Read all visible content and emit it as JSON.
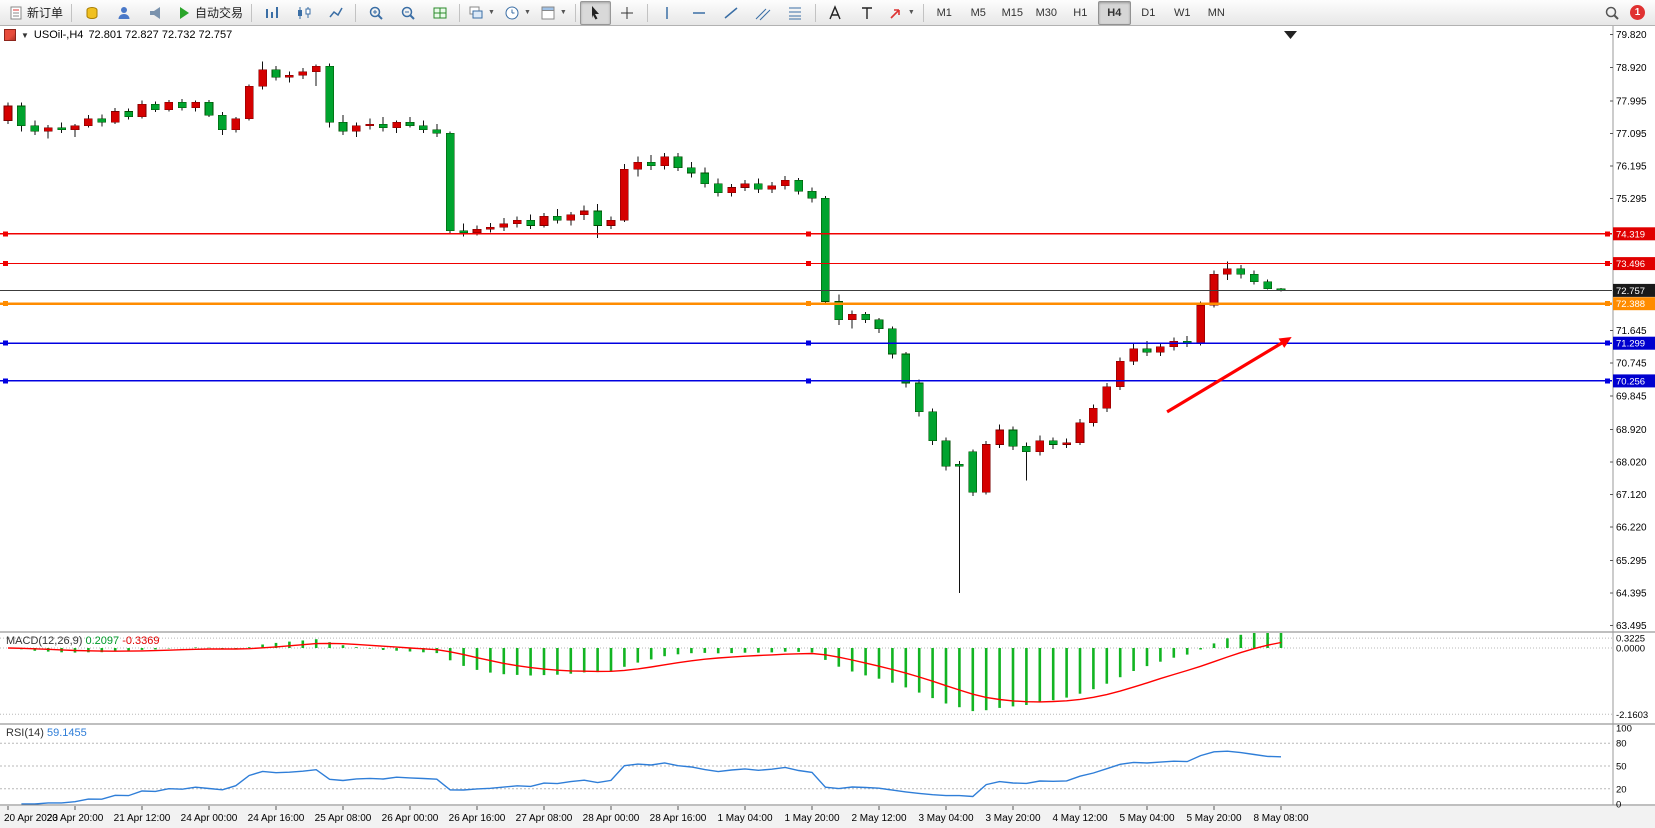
{
  "window": {
    "badge_count": "1"
  },
  "toolbar": {
    "new_order_label": "新订单",
    "auto_trading_label": "自动交易",
    "timeframes": [
      "M1",
      "M5",
      "M15",
      "M30",
      "H1",
      "H4",
      "D1",
      "W1",
      "MN"
    ],
    "active_timeframe": "H4",
    "items": [
      {
        "name": "new-order-button",
        "icon": "new-order-icon",
        "label_key": "new_order_label"
      },
      {
        "sep": true
      },
      {
        "name": "market-watch-button",
        "icon": "coins-icon"
      },
      {
        "name": "accounts-button",
        "icon": "person-icon"
      },
      {
        "name": "alerts-button",
        "icon": "megaphone-icon"
      },
      {
        "name": "auto-trading-button",
        "icon": "play-icon",
        "label_key": "auto_trading_label"
      },
      {
        "sep": true
      },
      {
        "name": "bar-chart-button",
        "icon": "bars-icon"
      },
      {
        "name": "candlestick-chart-button",
        "icon": "candles-icon"
      },
      {
        "name": "line-chart-button",
        "icon": "line-icon"
      },
      {
        "sep": true
      },
      {
        "name": "zoom-in-button",
        "icon": "zoom-in-icon"
      },
      {
        "name": "zoom-out-button",
        "icon": "zoom-out-icon"
      },
      {
        "name": "tile-windows-button",
        "icon": "grid-icon"
      },
      {
        "sep": true
      },
      {
        "name": "new-chart-button",
        "icon": "cascade-icon",
        "caret": true
      },
      {
        "name": "profiles-button",
        "icon": "clock-icon",
        "caret": true
      },
      {
        "name": "indicators-button",
        "icon": "template-icon",
        "caret": true
      },
      {
        "sep": true
      },
      {
        "name": "cursor-button",
        "icon": "cursor-icon",
        "pressed": true
      },
      {
        "name": "crosshair-button",
        "icon": "crosshair-icon"
      },
      {
        "sep": true
      },
      {
        "name": "vertical-line-button",
        "icon": "vline-icon"
      },
      {
        "name": "horizontal-line-button",
        "icon": "hline-icon"
      },
      {
        "name": "trendline-button",
        "icon": "trend-icon"
      },
      {
        "name": "channel-button",
        "icon": "channel-icon"
      },
      {
        "name": "fibonacci-button",
        "icon": "fibo-icon"
      },
      {
        "sep": true
      },
      {
        "name": "text-button",
        "icon": "text-a-icon"
      },
      {
        "name": "label-button",
        "icon": "text-t-icon"
      },
      {
        "name": "arrows-button",
        "icon": "arrow-draw-icon",
        "caret": true
      },
      {
        "sep": true
      },
      {
        "timeframes": true
      },
      {
        "spacer": true
      },
      {
        "name": "search-button",
        "icon": "magnifier-icon"
      },
      {
        "badge": true
      }
    ]
  },
  "chart_header": {
    "dropdown_glyph": "▼",
    "symbol_period": "USOil-,H4",
    "ohlc_text": "72.801 72.827 72.732 72.757"
  },
  "price_axis": {
    "labels": [
      79.82,
      78.92,
      77.995,
      77.095,
      76.195,
      75.295,
      71.645,
      70.745,
      69.845,
      68.92,
      68.02,
      67.12,
      66.22,
      65.295,
      64.395,
      63.495
    ],
    "badges": [
      {
        "value": "74.319",
        "color": "#e00000"
      },
      {
        "value": "73.496",
        "color": "#e00000"
      },
      {
        "value": "72.757",
        "color": "#1a1a1a"
      },
      {
        "value": "72.388",
        "color": "#ff8c00"
      },
      {
        "value": "71.299",
        "color": "#0000cf"
      },
      {
        "value": "70.256",
        "color": "#0000cf"
      }
    ]
  },
  "indicators": {
    "macd": {
      "label": "MACD(12,26,9)",
      "main_value": "0.2097",
      "signal_value": "-0.3369",
      "axis_labels": [
        "0.3225",
        "0.0000",
        "-2.1603"
      ],
      "histogram_color": "#12b422",
      "signal_color": "#ff0000"
    },
    "rsi": {
      "label": "RSI(14)",
      "value": "59.1455",
      "axis_labels": [
        "100",
        "80",
        "50",
        "20",
        "0"
      ],
      "levels": [
        80,
        50,
        20
      ],
      "line_color": "#2f7ed8"
    }
  },
  "time_axis": {
    "labels": [
      "20 Apr 2023",
      "20 Apr 20:00",
      "21 Apr 12:00",
      "24 Apr 00:00",
      "24 Apr 16:00",
      "25 Apr 08:00",
      "26 Apr 00:00",
      "26 Apr 16:00",
      "27 Apr 08:00",
      "28 Apr 00:00",
      "28 Apr 16:00",
      "1 May 04:00",
      "1 May 20:00",
      "2 May 12:00",
      "3 May 04:00",
      "3 May 20:00",
      "4 May 12:00",
      "5 May 04:00",
      "5 May 20:00",
      "8 May 08:00"
    ],
    "label_every_n_candles": 5
  },
  "chart_data": {
    "type": "candlestick",
    "symbol": "USOil",
    "period": "H4",
    "current_ohlc": {
      "open": 72.801,
      "high": 72.827,
      "low": 72.732,
      "close": 72.757
    },
    "ylim": [
      63.4,
      79.95
    ],
    "up_color": "#d40000",
    "down_color": "#00a32e",
    "candles": [
      [
        77.45,
        77.95,
        77.35,
        77.85
      ],
      [
        77.85,
        77.95,
        77.15,
        77.3
      ],
      [
        77.3,
        77.45,
        77.05,
        77.15
      ],
      [
        77.15,
        77.32,
        76.95,
        77.25
      ],
      [
        77.25,
        77.4,
        77.1,
        77.2
      ],
      [
        77.2,
        77.35,
        77.0,
        77.3
      ],
      [
        77.3,
        77.6,
        77.25,
        77.5
      ],
      [
        77.5,
        77.62,
        77.28,
        77.4
      ],
      [
        77.4,
        77.8,
        77.35,
        77.7
      ],
      [
        77.7,
        77.78,
        77.48,
        77.55
      ],
      [
        77.55,
        78.0,
        77.5,
        77.9
      ],
      [
        77.9,
        77.98,
        77.68,
        77.75
      ],
      [
        77.75,
        78.02,
        77.7,
        77.95
      ],
      [
        77.95,
        78.05,
        77.72,
        77.8
      ],
      [
        77.8,
        78.0,
        77.7,
        77.95
      ],
      [
        77.95,
        78.02,
        77.55,
        77.6
      ],
      [
        77.6,
        77.68,
        77.05,
        77.2
      ],
      [
        77.2,
        77.55,
        77.12,
        77.5
      ],
      [
        77.5,
        78.45,
        77.45,
        78.4
      ],
      [
        78.4,
        79.08,
        78.3,
        78.85
      ],
      [
        78.85,
        78.95,
        78.55,
        78.65
      ],
      [
        78.65,
        78.8,
        78.5,
        78.7
      ],
      [
        78.7,
        78.9,
        78.6,
        78.8
      ],
      [
        78.8,
        79.0,
        78.4,
        78.95
      ],
      [
        78.95,
        79.02,
        77.25,
        77.4
      ],
      [
        77.4,
        77.6,
        77.05,
        77.15
      ],
      [
        77.15,
        77.4,
        77.0,
        77.3
      ],
      [
        77.3,
        77.5,
        77.2,
        77.35
      ],
      [
        77.35,
        77.55,
        77.15,
        77.25
      ],
      [
        77.25,
        77.45,
        77.1,
        77.4
      ],
      [
        77.4,
        77.55,
        77.25,
        77.3
      ],
      [
        77.3,
        77.45,
        77.1,
        77.2
      ],
      [
        77.2,
        77.35,
        77.0,
        77.1
      ],
      [
        77.1,
        77.15,
        74.3,
        74.4
      ],
      [
        74.4,
        74.6,
        74.25,
        74.35
      ],
      [
        74.35,
        74.55,
        74.28,
        74.45
      ],
      [
        74.45,
        74.62,
        74.35,
        74.5
      ],
      [
        74.5,
        74.75,
        74.4,
        74.6
      ],
      [
        74.6,
        74.8,
        74.5,
        74.7
      ],
      [
        74.7,
        74.85,
        74.45,
        74.55
      ],
      [
        74.55,
        74.9,
        74.5,
        74.8
      ],
      [
        74.8,
        75.0,
        74.6,
        74.7
      ],
      [
        74.7,
        74.92,
        74.55,
        74.85
      ],
      [
        74.85,
        75.1,
        74.7,
        74.95
      ],
      [
        74.95,
        75.15,
        74.2,
        74.55
      ],
      [
        74.55,
        74.8,
        74.45,
        74.7
      ],
      [
        74.7,
        76.25,
        74.65,
        76.1
      ],
      [
        76.1,
        76.45,
        75.9,
        76.3
      ],
      [
        76.3,
        76.5,
        76.08,
        76.2
      ],
      [
        76.2,
        76.55,
        76.1,
        76.45
      ],
      [
        76.45,
        76.55,
        76.05,
        76.15
      ],
      [
        76.15,
        76.3,
        75.88,
        76.0
      ],
      [
        76.0,
        76.15,
        75.6,
        75.7
      ],
      [
        75.7,
        75.85,
        75.35,
        75.45
      ],
      [
        75.45,
        75.7,
        75.35,
        75.6
      ],
      [
        75.6,
        75.8,
        75.5,
        75.7
      ],
      [
        75.7,
        75.85,
        75.45,
        75.55
      ],
      [
        75.55,
        75.75,
        75.45,
        75.65
      ],
      [
        75.65,
        75.92,
        75.55,
        75.8
      ],
      [
        75.8,
        75.86,
        75.4,
        75.5
      ],
      [
        75.5,
        75.6,
        75.18,
        75.3
      ],
      [
        75.3,
        75.36,
        72.35,
        72.45
      ],
      [
        72.45,
        72.65,
        71.8,
        71.95
      ],
      [
        71.95,
        72.2,
        71.7,
        72.1
      ],
      [
        72.1,
        72.16,
        71.85,
        71.95
      ],
      [
        71.95,
        72.0,
        71.58,
        71.7
      ],
      [
        71.7,
        71.76,
        70.88,
        71.0
      ],
      [
        71.0,
        71.06,
        70.08,
        70.2
      ],
      [
        70.2,
        70.3,
        69.28,
        69.4
      ],
      [
        69.4,
        69.5,
        68.48,
        68.6
      ],
      [
        68.6,
        68.7,
        67.78,
        67.9
      ],
      [
        67.95,
        68.05,
        64.4,
        67.9
      ],
      [
        68.3,
        68.36,
        67.08,
        67.18
      ],
      [
        67.18,
        68.6,
        67.12,
        68.5
      ],
      [
        68.5,
        69.05,
        68.4,
        68.9
      ],
      [
        68.9,
        69.0,
        68.35,
        68.45
      ],
      [
        68.45,
        68.56,
        67.5,
        68.3
      ],
      [
        68.3,
        68.75,
        68.2,
        68.6
      ],
      [
        68.6,
        68.7,
        68.38,
        68.5
      ],
      [
        68.5,
        68.66,
        68.4,
        68.55
      ],
      [
        68.55,
        69.2,
        68.48,
        69.1
      ],
      [
        69.1,
        69.6,
        69.0,
        69.5
      ],
      [
        69.5,
        70.2,
        69.4,
        70.1
      ],
      [
        70.1,
        70.9,
        70.0,
        70.8
      ],
      [
        70.8,
        71.3,
        70.7,
        71.15
      ],
      [
        71.15,
        71.36,
        70.95,
        71.05
      ],
      [
        71.05,
        71.3,
        70.95,
        71.2
      ],
      [
        71.2,
        71.46,
        71.1,
        71.35
      ],
      [
        71.35,
        71.5,
        71.2,
        71.3
      ],
      [
        71.3,
        72.45,
        71.24,
        72.35
      ],
      [
        72.35,
        73.3,
        72.28,
        73.2
      ],
      [
        73.2,
        73.55,
        73.05,
        73.35
      ],
      [
        73.35,
        73.46,
        73.08,
        73.2
      ],
      [
        73.2,
        73.3,
        72.92,
        73.0
      ],
      [
        73.0,
        73.06,
        72.78,
        72.8
      ],
      [
        72.801,
        72.827,
        72.732,
        72.757
      ]
    ],
    "hlines": [
      {
        "value": 74.319,
        "color": "#f00000",
        "width": 1.2,
        "handles": true
      },
      {
        "value": 73.496,
        "color": "#f00000",
        "width": 1.2,
        "handles": true
      },
      {
        "value": 72.388,
        "color": "#ff8c00",
        "width": 2.4,
        "handles": true
      },
      {
        "value": 71.299,
        "color": "#0000e0",
        "width": 1.6,
        "handles": true
      },
      {
        "value": 70.256,
        "color": "#0000e0",
        "width": 1.6,
        "handles": true
      }
    ],
    "bid_line": {
      "value": 72.757,
      "color": "#3c3c3c",
      "width": 1
    },
    "arrow": {
      "x1_index": 86.5,
      "price1": 69.4,
      "x2_index": 95.8,
      "price2": 71.47,
      "color": "#ff0000"
    }
  }
}
